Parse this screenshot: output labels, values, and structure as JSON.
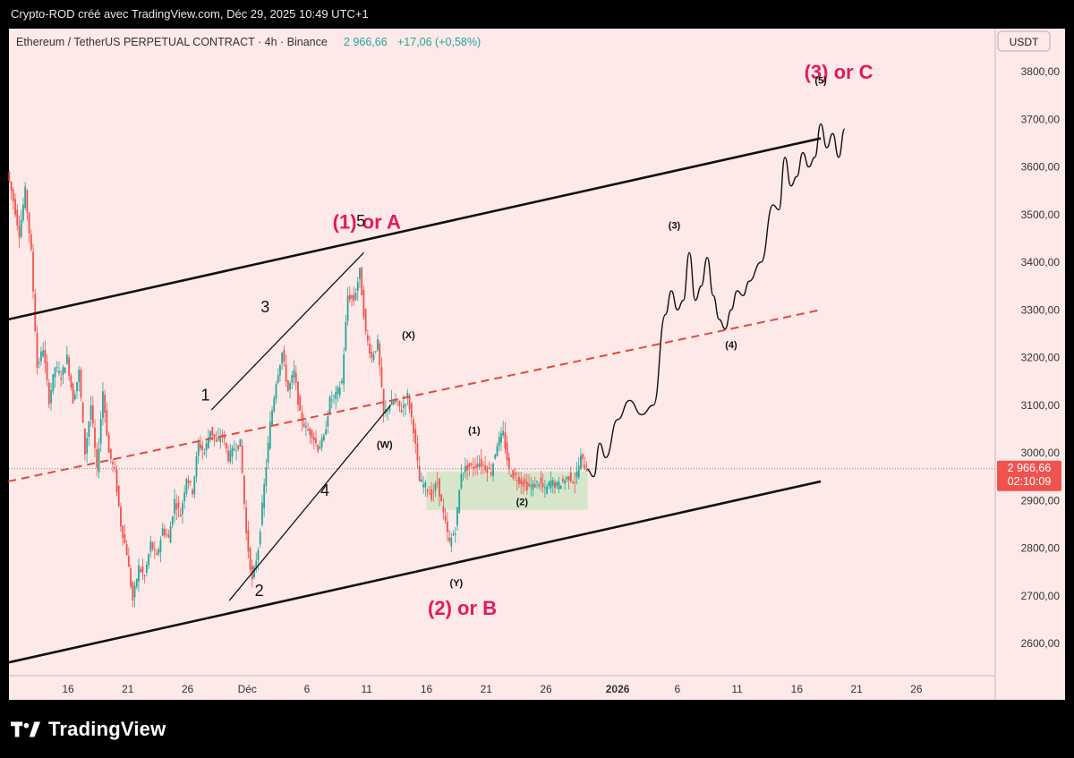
{
  "topbar": {
    "text": "Crypto-ROD créé avec TradingView.com, Déc 29, 2025 10:49 UTC+1"
  },
  "legend": {
    "symbol": "Ethereum / TetherUS PERPETUAL CONTRACT · 4h · Binance",
    "price": "2 966,66",
    "change": "+17,06 (+0,58%)"
  },
  "brand": {
    "name": "TradingView"
  },
  "price_tag": {
    "price": "2 966,66",
    "countdown": "02:10:09"
  },
  "colors": {
    "up": "#26a69a",
    "down": "#ef5350",
    "background": "#fde9e7",
    "label_magenta": "#e2195e",
    "zone": "#d3e6c8"
  },
  "chart_data": {
    "type": "candlestick",
    "currency": "USDT",
    "timeframe": "4h",
    "ylim": [
      2540,
      3880
    ],
    "y_ticks": [
      "3800,00",
      "3700,00",
      "3600,00",
      "3500,00",
      "3400,00",
      "3300,00",
      "3200,00",
      "3100,00",
      "3000,00",
      "2900,00",
      "2800,00",
      "2700,00",
      "2600,00"
    ],
    "x_ticks": [
      {
        "label": "16",
        "date": "2025-11-16"
      },
      {
        "label": "21",
        "date": "2025-11-21"
      },
      {
        "label": "26",
        "date": "2025-11-26"
      },
      {
        "label": "Déc",
        "date": "2025-12-01"
      },
      {
        "label": "6",
        "date": "2025-12-06"
      },
      {
        "label": "11",
        "date": "2025-12-11"
      },
      {
        "label": "16",
        "date": "2025-12-16"
      },
      {
        "label": "21",
        "date": "2025-12-21"
      },
      {
        "label": "26",
        "date": "2025-12-26"
      },
      {
        "label": "2026",
        "date": "2026-01-01"
      },
      {
        "label": "6",
        "date": "2026-01-06"
      },
      {
        "label": "11",
        "date": "2026-01-11"
      },
      {
        "label": "16",
        "date": "2026-01-16"
      },
      {
        "label": "21",
        "date": "2026-01-21"
      },
      {
        "label": "26",
        "date": "2026-01-26"
      }
    ],
    "price_path": [
      [
        "2025-11-11T00",
        3590
      ],
      [
        "2025-11-11T12",
        3530
      ],
      [
        "2025-11-12T00",
        3460
      ],
      [
        "2025-11-12T12",
        3550
      ],
      [
        "2025-11-13T00",
        3420
      ],
      [
        "2025-11-13T12",
        3180
      ],
      [
        "2025-11-14T00",
        3220
      ],
      [
        "2025-11-14T12",
        3110
      ],
      [
        "2025-11-15T00",
        3180
      ],
      [
        "2025-11-15T12",
        3160
      ],
      [
        "2025-11-16T00",
        3200
      ],
      [
        "2025-11-16T12",
        3110
      ],
      [
        "2025-11-17T00",
        3170
      ],
      [
        "2025-11-17T12",
        3000
      ],
      [
        "2025-11-18T00",
        3100
      ],
      [
        "2025-11-18T12",
        2960
      ],
      [
        "2025-11-19T00",
        3130
      ],
      [
        "2025-11-19T12",
        3000
      ],
      [
        "2025-11-20T00",
        2960
      ],
      [
        "2025-11-20T12",
        2850
      ],
      [
        "2025-11-21T00",
        2790
      ],
      [
        "2025-11-21T12",
        2690
      ],
      [
        "2025-11-22T00",
        2760
      ],
      [
        "2025-11-22T12",
        2740
      ],
      [
        "2025-11-23T00",
        2810
      ],
      [
        "2025-11-23T12",
        2780
      ],
      [
        "2025-11-24T00",
        2840
      ],
      [
        "2025-11-24T12",
        2820
      ],
      [
        "2025-11-25T00",
        2900
      ],
      [
        "2025-11-25T12",
        2870
      ],
      [
        "2025-11-26T00",
        2950
      ],
      [
        "2025-11-26T12",
        2920
      ],
      [
        "2025-11-27T00",
        3020
      ],
      [
        "2025-11-27T12",
        3000
      ],
      [
        "2025-11-28T00",
        3050
      ],
      [
        "2025-11-28T12",
        3020
      ],
      [
        "2025-11-29T00",
        3040
      ],
      [
        "2025-11-29T12",
        2990
      ],
      [
        "2025-11-30T00",
        3010
      ],
      [
        "2025-11-30T12",
        3020
      ],
      [
        "2025-12-01T00",
        2830
      ],
      [
        "2025-12-01T12",
        2730
      ],
      [
        "2025-12-02T00",
        2800
      ],
      [
        "2025-12-02T12",
        2930
      ],
      [
        "2025-12-03T00",
        3060
      ],
      [
        "2025-12-03T12",
        3150
      ],
      [
        "2025-12-04T00",
        3210
      ],
      [
        "2025-12-04T12",
        3130
      ],
      [
        "2025-12-05T00",
        3170
      ],
      [
        "2025-12-05T12",
        3080
      ],
      [
        "2025-12-06T00",
        3050
      ],
      [
        "2025-12-06T12",
        3040
      ],
      [
        "2025-12-07T00",
        3010
      ],
      [
        "2025-12-07T12",
        3030
      ],
      [
        "2025-12-08T00",
        3110
      ],
      [
        "2025-12-08T12",
        3120
      ],
      [
        "2025-12-09T00",
        3150
      ],
      [
        "2025-12-09T12",
        3330
      ],
      [
        "2025-12-10T00",
        3320
      ],
      [
        "2025-12-10T12",
        3380
      ],
      [
        "2025-12-11T00",
        3250
      ],
      [
        "2025-12-11T12",
        3200
      ],
      [
        "2025-12-12T00",
        3230
      ],
      [
        "2025-12-12T12",
        3080
      ],
      [
        "2025-12-13T00",
        3100
      ],
      [
        "2025-12-13T12",
        3110
      ],
      [
        "2025-12-14T00",
        3090
      ],
      [
        "2025-12-14T12",
        3120
      ],
      [
        "2025-12-15T00",
        3050
      ],
      [
        "2025-12-15T12",
        2940
      ],
      [
        "2025-12-16T00",
        2930
      ],
      [
        "2025-12-16T12",
        2910
      ],
      [
        "2025-12-17T00",
        2940
      ],
      [
        "2025-12-17T12",
        2870
      ],
      [
        "2025-12-18T00",
        2810
      ],
      [
        "2025-12-18T12",
        2840
      ],
      [
        "2025-12-19T00",
        2960
      ],
      [
        "2025-12-19T12",
        2970
      ],
      [
        "2025-12-20T00",
        2970
      ],
      [
        "2025-12-20T12",
        2980
      ],
      [
        "2025-12-21T00",
        2970
      ],
      [
        "2025-12-21T12",
        2960
      ],
      [
        "2025-12-22T00",
        3020
      ],
      [
        "2025-12-22T12",
        3040
      ],
      [
        "2025-12-23T00",
        2960
      ],
      [
        "2025-12-23T12",
        2950
      ],
      [
        "2025-12-24T00",
        2940
      ],
      [
        "2025-12-24T12",
        2930
      ],
      [
        "2025-12-25T00",
        2930
      ],
      [
        "2025-12-25T12",
        2940
      ],
      [
        "2025-12-26T00",
        2920
      ],
      [
        "2025-12-26T12",
        2940
      ],
      [
        "2025-12-27T00",
        2930
      ],
      [
        "2025-12-27T12",
        2940
      ],
      [
        "2025-12-28T00",
        2950
      ],
      [
        "2025-12-28T12",
        2940
      ],
      [
        "2025-12-29T00",
        2990
      ],
      [
        "2025-12-29T10",
        2966
      ]
    ],
    "projection": [
      [
        "2025-12-29T10",
        2966
      ],
      [
        "2025-12-30T00",
        2950
      ],
      [
        "2025-12-30T12",
        3020
      ],
      [
        "2025-12-31T00",
        2990
      ],
      [
        "2026-01-01T00",
        3070
      ],
      [
        "2026-01-02T00",
        3110
      ],
      [
        "2026-01-03T00",
        3080
      ],
      [
        "2026-01-04T00",
        3100
      ],
      [
        "2026-01-05T00",
        3290
      ],
      [
        "2026-01-05T12",
        3340
      ],
      [
        "2026-01-06T00",
        3300
      ],
      [
        "2026-01-06T12",
        3320
      ],
      [
        "2026-01-07T00",
        3420
      ],
      [
        "2026-01-07T12",
        3320
      ],
      [
        "2026-01-08T00",
        3350
      ],
      [
        "2026-01-08T12",
        3410
      ],
      [
        "2026-01-09T00",
        3330
      ],
      [
        "2026-01-09T12",
        3280
      ],
      [
        "2026-01-10T00",
        3260
      ],
      [
        "2026-01-10T12",
        3300
      ],
      [
        "2026-01-11T00",
        3340
      ],
      [
        "2026-01-11T12",
        3330
      ],
      [
        "2026-01-12T00",
        3360
      ],
      [
        "2026-01-13T00",
        3400
      ],
      [
        "2026-01-14T00",
        3520
      ],
      [
        "2026-01-14T12",
        3510
      ],
      [
        "2026-01-15T00",
        3620
      ],
      [
        "2026-01-15T12",
        3560
      ],
      [
        "2026-01-16T00",
        3580
      ],
      [
        "2026-01-16T12",
        3630
      ],
      [
        "2026-01-17T00",
        3600
      ],
      [
        "2026-01-17T12",
        3620
      ],
      [
        "2026-01-18T00",
        3690
      ],
      [
        "2026-01-18T12",
        3640
      ],
      [
        "2026-01-19T00",
        3670
      ],
      [
        "2026-01-19T12",
        3620
      ],
      [
        "2026-01-20T00",
        3680
      ]
    ],
    "trendlines": [
      {
        "name": "channel-upper",
        "from": [
          "2025-11-11T00",
          3280
        ],
        "to": [
          "2026-01-18T00",
          3660
        ],
        "style": "solid"
      },
      {
        "name": "channel-lower",
        "from": [
          "2025-11-11T00",
          2560
        ],
        "to": [
          "2026-01-18T00",
          2940
        ],
        "style": "solid"
      },
      {
        "name": "channel-mid",
        "from": [
          "2025-11-11T00",
          2940
        ],
        "to": [
          "2026-01-18T00",
          3300
        ],
        "style": "dashed"
      },
      {
        "name": "wave-1-3",
        "from": [
          "2025-11-28T00",
          3090
        ],
        "to": [
          "2025-12-10T18",
          3420
        ],
        "style": "thin"
      },
      {
        "name": "wave-2-4",
        "from": [
          "2025-11-29T12",
          2690
        ],
        "to": [
          "2025-12-13T00",
          3100
        ],
        "style": "thin"
      }
    ],
    "zone": {
      "from": "2025-12-16T00",
      "to": "2025-12-29T12",
      "low": 2880,
      "high": 2960
    },
    "labels": [
      {
        "text": "(1) or A",
        "at": [
          "2025-12-11T00",
          3470
        ],
        "style": "major"
      },
      {
        "text": "(2) or B",
        "at": [
          "2025-12-19T00",
          2660
        ],
        "style": "major"
      },
      {
        "text": "(3) or C",
        "at": [
          "2026-01-19T12",
          3785
        ],
        "style": "major"
      },
      {
        "text": "1",
        "at": [
          "2025-11-27T12",
          3110
        ],
        "style": "wave"
      },
      {
        "text": "2",
        "at": [
          "2025-12-02T00",
          2700
        ],
        "style": "wave"
      },
      {
        "text": "3",
        "at": [
          "2025-12-02T12",
          3295
        ],
        "style": "wave"
      },
      {
        "text": "4",
        "at": [
          "2025-12-07T12",
          2910
        ],
        "style": "wave"
      },
      {
        "text": "5",
        "at": [
          "2025-12-10T12",
          3475
        ],
        "style": "wave"
      },
      {
        "text": "(X)",
        "at": [
          "2025-12-14T12",
          3240
        ],
        "style": "small"
      },
      {
        "text": "(W)",
        "at": [
          "2025-12-12T12",
          3010
        ],
        "style": "small"
      },
      {
        "text": "(Y)",
        "at": [
          "2025-12-18T12",
          2720
        ],
        "style": "small"
      },
      {
        "text": "(1)",
        "at": [
          "2025-12-20T00",
          3040
        ],
        "style": "small"
      },
      {
        "text": "(2)",
        "at": [
          "2025-12-24T00",
          2890
        ],
        "style": "small"
      },
      {
        "text": "(3)",
        "at": [
          "2026-01-05T18",
          3470
        ],
        "style": "small"
      },
      {
        "text": "(4)",
        "at": [
          "2026-01-10T12",
          3220
        ],
        "style": "small"
      },
      {
        "text": "(5)",
        "at": [
          "2026-01-18T00",
          3775
        ],
        "style": "small"
      }
    ],
    "current_price": 2966.66
  }
}
